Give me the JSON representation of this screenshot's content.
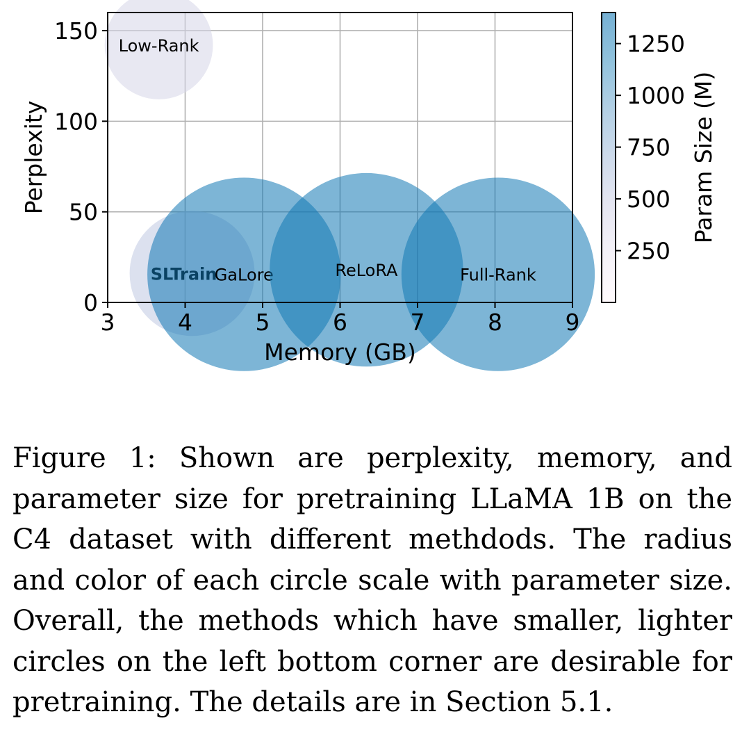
{
  "chart_data": {
    "type": "scatter",
    "xlabel": "Memory (GB)",
    "ylabel": "Perplexity",
    "xlim": [
      3,
      9
    ],
    "ylim": [
      0,
      160
    ],
    "xticks": [
      3,
      4,
      5,
      6,
      7,
      8,
      9
    ],
    "yticks": [
      0,
      50,
      100,
      150
    ],
    "grid": true,
    "points": [
      {
        "label": "Low-Rank",
        "x": 3.66,
        "y": 142,
        "param_size": 420,
        "bold": false
      },
      {
        "label": "SLTrain",
        "x": 4.09,
        "y": 16,
        "param_size": 560,
        "bold": true
      },
      {
        "label": "GaLore",
        "x": 4.76,
        "y": 15.5,
        "param_size": 1340,
        "bold": false
      },
      {
        "label": "ReLoRA",
        "x": 6.34,
        "y": 18,
        "param_size": 1340,
        "bold": false
      },
      {
        "label": "Full-Rank",
        "x": 8.04,
        "y": 15.5,
        "param_size": 1340,
        "bold": false
      }
    ],
    "colorbar": {
      "label": "Param Size (M)",
      "min": 0,
      "max": 1400,
      "ticks": [
        250,
        500,
        750,
        1000,
        1250
      ],
      "colormap": [
        "#fff7fb",
        "#ece7f2",
        "#d0d1e6",
        "#a6bddb",
        "#74a9cf",
        "#3690c0",
        "#0570b0"
      ]
    }
  },
  "caption": "Figure 1: Shown are perplexity, memory, and parameter size for pretraining LLaMA 1B on the C4 dataset with different methdods. The radius and color of each circle scale with parameter size. Overall, the methods which have smaller, lighter circles on the left bottom corner are desirable for pretraining. The details are in Section 5.1."
}
